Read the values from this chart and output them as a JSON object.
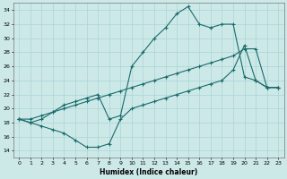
{
  "xlabel": "Humidex (Indice chaleur)",
  "xlim": [
    -0.5,
    23.5
  ],
  "ylim": [
    13,
    35
  ],
  "yticks": [
    14,
    16,
    18,
    20,
    22,
    24,
    26,
    28,
    30,
    32,
    34
  ],
  "xticks": [
    0,
    1,
    2,
    3,
    4,
    5,
    6,
    7,
    8,
    9,
    10,
    11,
    12,
    13,
    14,
    15,
    16,
    17,
    18,
    19,
    20,
    21,
    22,
    23
  ],
  "bg_color": "#cce9e8",
  "grid_color": "#aad4d4",
  "line_color": "#1a6b6b",
  "line1_x": [
    0,
    1,
    2,
    3,
    4,
    5,
    6,
    7,
    8,
    9,
    10,
    11,
    12,
    13,
    14,
    15,
    16,
    17,
    18,
    19,
    20,
    21,
    22,
    23
  ],
  "line1_y": [
    18.5,
    18.0,
    17.5,
    17.0,
    16.5,
    15.5,
    14.5,
    14.5,
    15.0,
    18.5,
    20.0,
    20.5,
    21.0,
    21.5,
    22.0,
    22.5,
    23.0,
    23.5,
    24.0,
    25.5,
    29.0,
    24.0,
    23.0,
    23.0
  ],
  "line2_x": [
    0,
    1,
    2,
    3,
    4,
    5,
    6,
    7,
    8,
    9,
    10,
    11,
    12,
    13,
    14,
    15,
    16,
    17,
    18,
    19,
    20,
    21,
    22,
    23
  ],
  "line2_y": [
    18.5,
    18.5,
    19.0,
    19.5,
    20.0,
    20.5,
    21.0,
    21.5,
    22.0,
    22.5,
    23.0,
    23.5,
    24.0,
    24.5,
    25.0,
    25.5,
    26.0,
    26.5,
    27.0,
    27.5,
    28.5,
    28.5,
    23.0,
    23.0
  ],
  "line3_x": [
    0,
    1,
    2,
    3,
    4,
    5,
    6,
    7,
    8,
    9,
    10,
    11,
    12,
    13,
    14,
    15,
    16,
    17,
    18,
    19,
    20,
    21,
    22,
    23
  ],
  "line3_y": [
    18.5,
    18.0,
    18.5,
    19.5,
    20.5,
    21.0,
    21.5,
    22.0,
    18.5,
    19.0,
    26.0,
    28.0,
    30.0,
    31.5,
    33.5,
    34.5,
    32.0,
    31.5,
    32.0,
    32.0,
    24.5,
    24.0,
    23.0,
    23.0
  ]
}
